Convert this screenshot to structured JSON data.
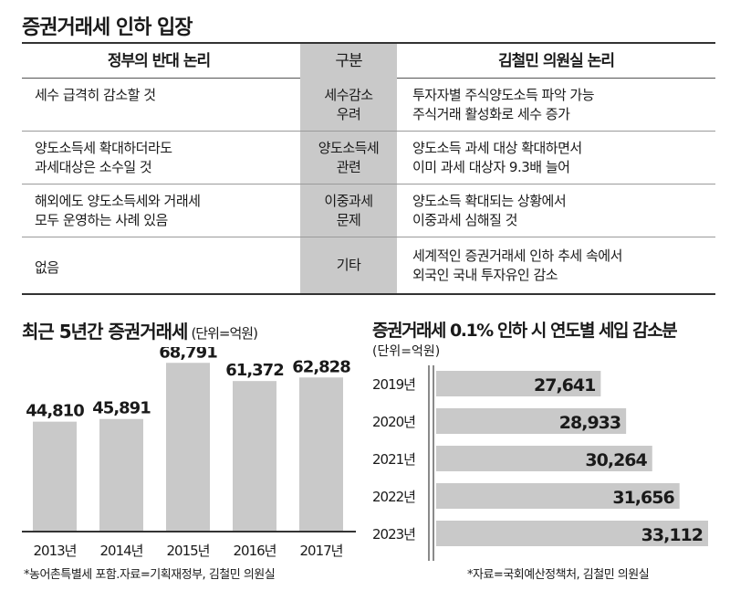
{
  "table": {
    "title": "증권거래세 인하 입장",
    "headers": {
      "left": "정부의 반대 논리",
      "mid": "구분",
      "right": "김철민 의원실 논리"
    },
    "rows": [
      {
        "left": [
          "세수 급격히 감소할 것"
        ],
        "mid": [
          "세수감소",
          "우려"
        ],
        "right": [
          "투자자별 주식양도소득 파악 가능",
          "주식거래 활성화로 세수 증가"
        ]
      },
      {
        "left": [
          "양도소득세 확대하더라도",
          "과세대상은 소수일 것"
        ],
        "mid": [
          "양도소득세",
          "관련"
        ],
        "right": [
          "양도소득 과세 대상 확대하면서",
          "이미 과세 대상자 9.3배 늘어"
        ]
      },
      {
        "left": [
          "해외에도 양도소득세와 거래세",
          "모두 운영하는 사례 있음"
        ],
        "mid": [
          "이중과세",
          "문제"
        ],
        "right": [
          "양도소득 확대되는 상황에서",
          "이중과세 심해질 것"
        ]
      },
      {
        "left": [
          "없음"
        ],
        "mid": [
          "기타"
        ],
        "right": [
          "세계적인 증권거래세 인하 추세 속에서",
          "외국인 국내 투자유인 감소"
        ]
      }
    ]
  },
  "left_chart": {
    "title": "최근 5년간 증권거래세",
    "unit": "(단위=억원)",
    "note": "*농어촌특별세 포함.자료=기획재정부, 김철민 의원실"
  },
  "right_chart": {
    "title": "증권거래세 0.1% 인하 시 연도별 세입 감소분",
    "unit": "(단위=억원)",
    "note": "*자료=국회예산정책처, 김철민 의원실"
  },
  "colors": {
    "bar": "#c9c9c9",
    "header_shade": "#c9c9c9",
    "text": "#1a1a1a",
    "rule": "#333333"
  },
  "chart_data": [
    {
      "type": "bar",
      "title": "최근 5년간 증권거래세",
      "unit": "단위=억원",
      "categories": [
        "2013년",
        "2014년",
        "2015년",
        "2016년",
        "2017년"
      ],
      "values": [
        44810,
        45891,
        68791,
        61372,
        62828
      ],
      "value_labels": [
        "44,810",
        "45,891",
        "68,791",
        "61,372",
        "62,828"
      ],
      "ylim": [
        0,
        70000
      ],
      "grid": false,
      "orientation": "vertical"
    },
    {
      "type": "bar",
      "title": "증권거래세 0.1% 인하 시 연도별 세입 감소분",
      "unit": "단위=억원",
      "categories": [
        "2019년",
        "2020년",
        "2021년",
        "2022년",
        "2023년"
      ],
      "values": [
        27641,
        28933,
        30264,
        31656,
        33112
      ],
      "value_labels": [
        "27,641",
        "28,933",
        "30,264",
        "31,656",
        "33,112"
      ],
      "xlim": [
        0,
        33112
      ],
      "axis_break": true,
      "grid": false,
      "orientation": "horizontal"
    }
  ]
}
